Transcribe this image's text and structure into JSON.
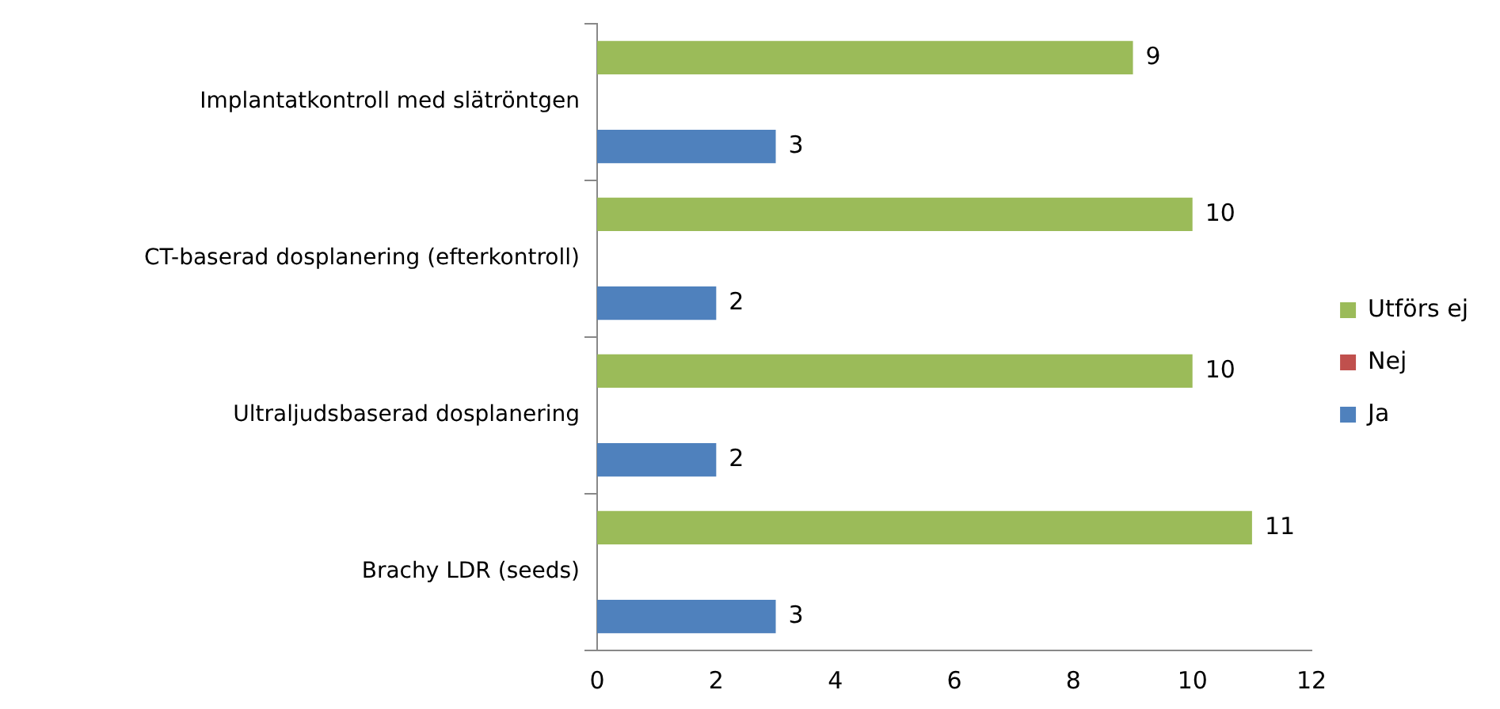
{
  "chart_data": {
    "type": "bar",
    "orientation": "horizontal",
    "categories": [
      "Implantatkontroll med slätröntgen",
      "CT-baserad dosplanering (efterkontroll)",
      "Ultraljudsbaserad dosplanering",
      "Brachy LDR (seeds)"
    ],
    "series": [
      {
        "name": "Utförs ej",
        "color": "#9bbb59",
        "values": [
          9,
          10,
          10,
          11
        ]
      },
      {
        "name": "Nej",
        "color": "#c0504d",
        "values": [
          null,
          null,
          null,
          null
        ]
      },
      {
        "name": "Ja",
        "color": "#4f81bd",
        "values": [
          3,
          2,
          2,
          3
        ]
      }
    ],
    "xlim": [
      0,
      12
    ],
    "xticks": [
      0,
      2,
      4,
      6,
      8,
      10,
      12
    ],
    "grid": false,
    "legend": "right",
    "data_labels": true
  }
}
